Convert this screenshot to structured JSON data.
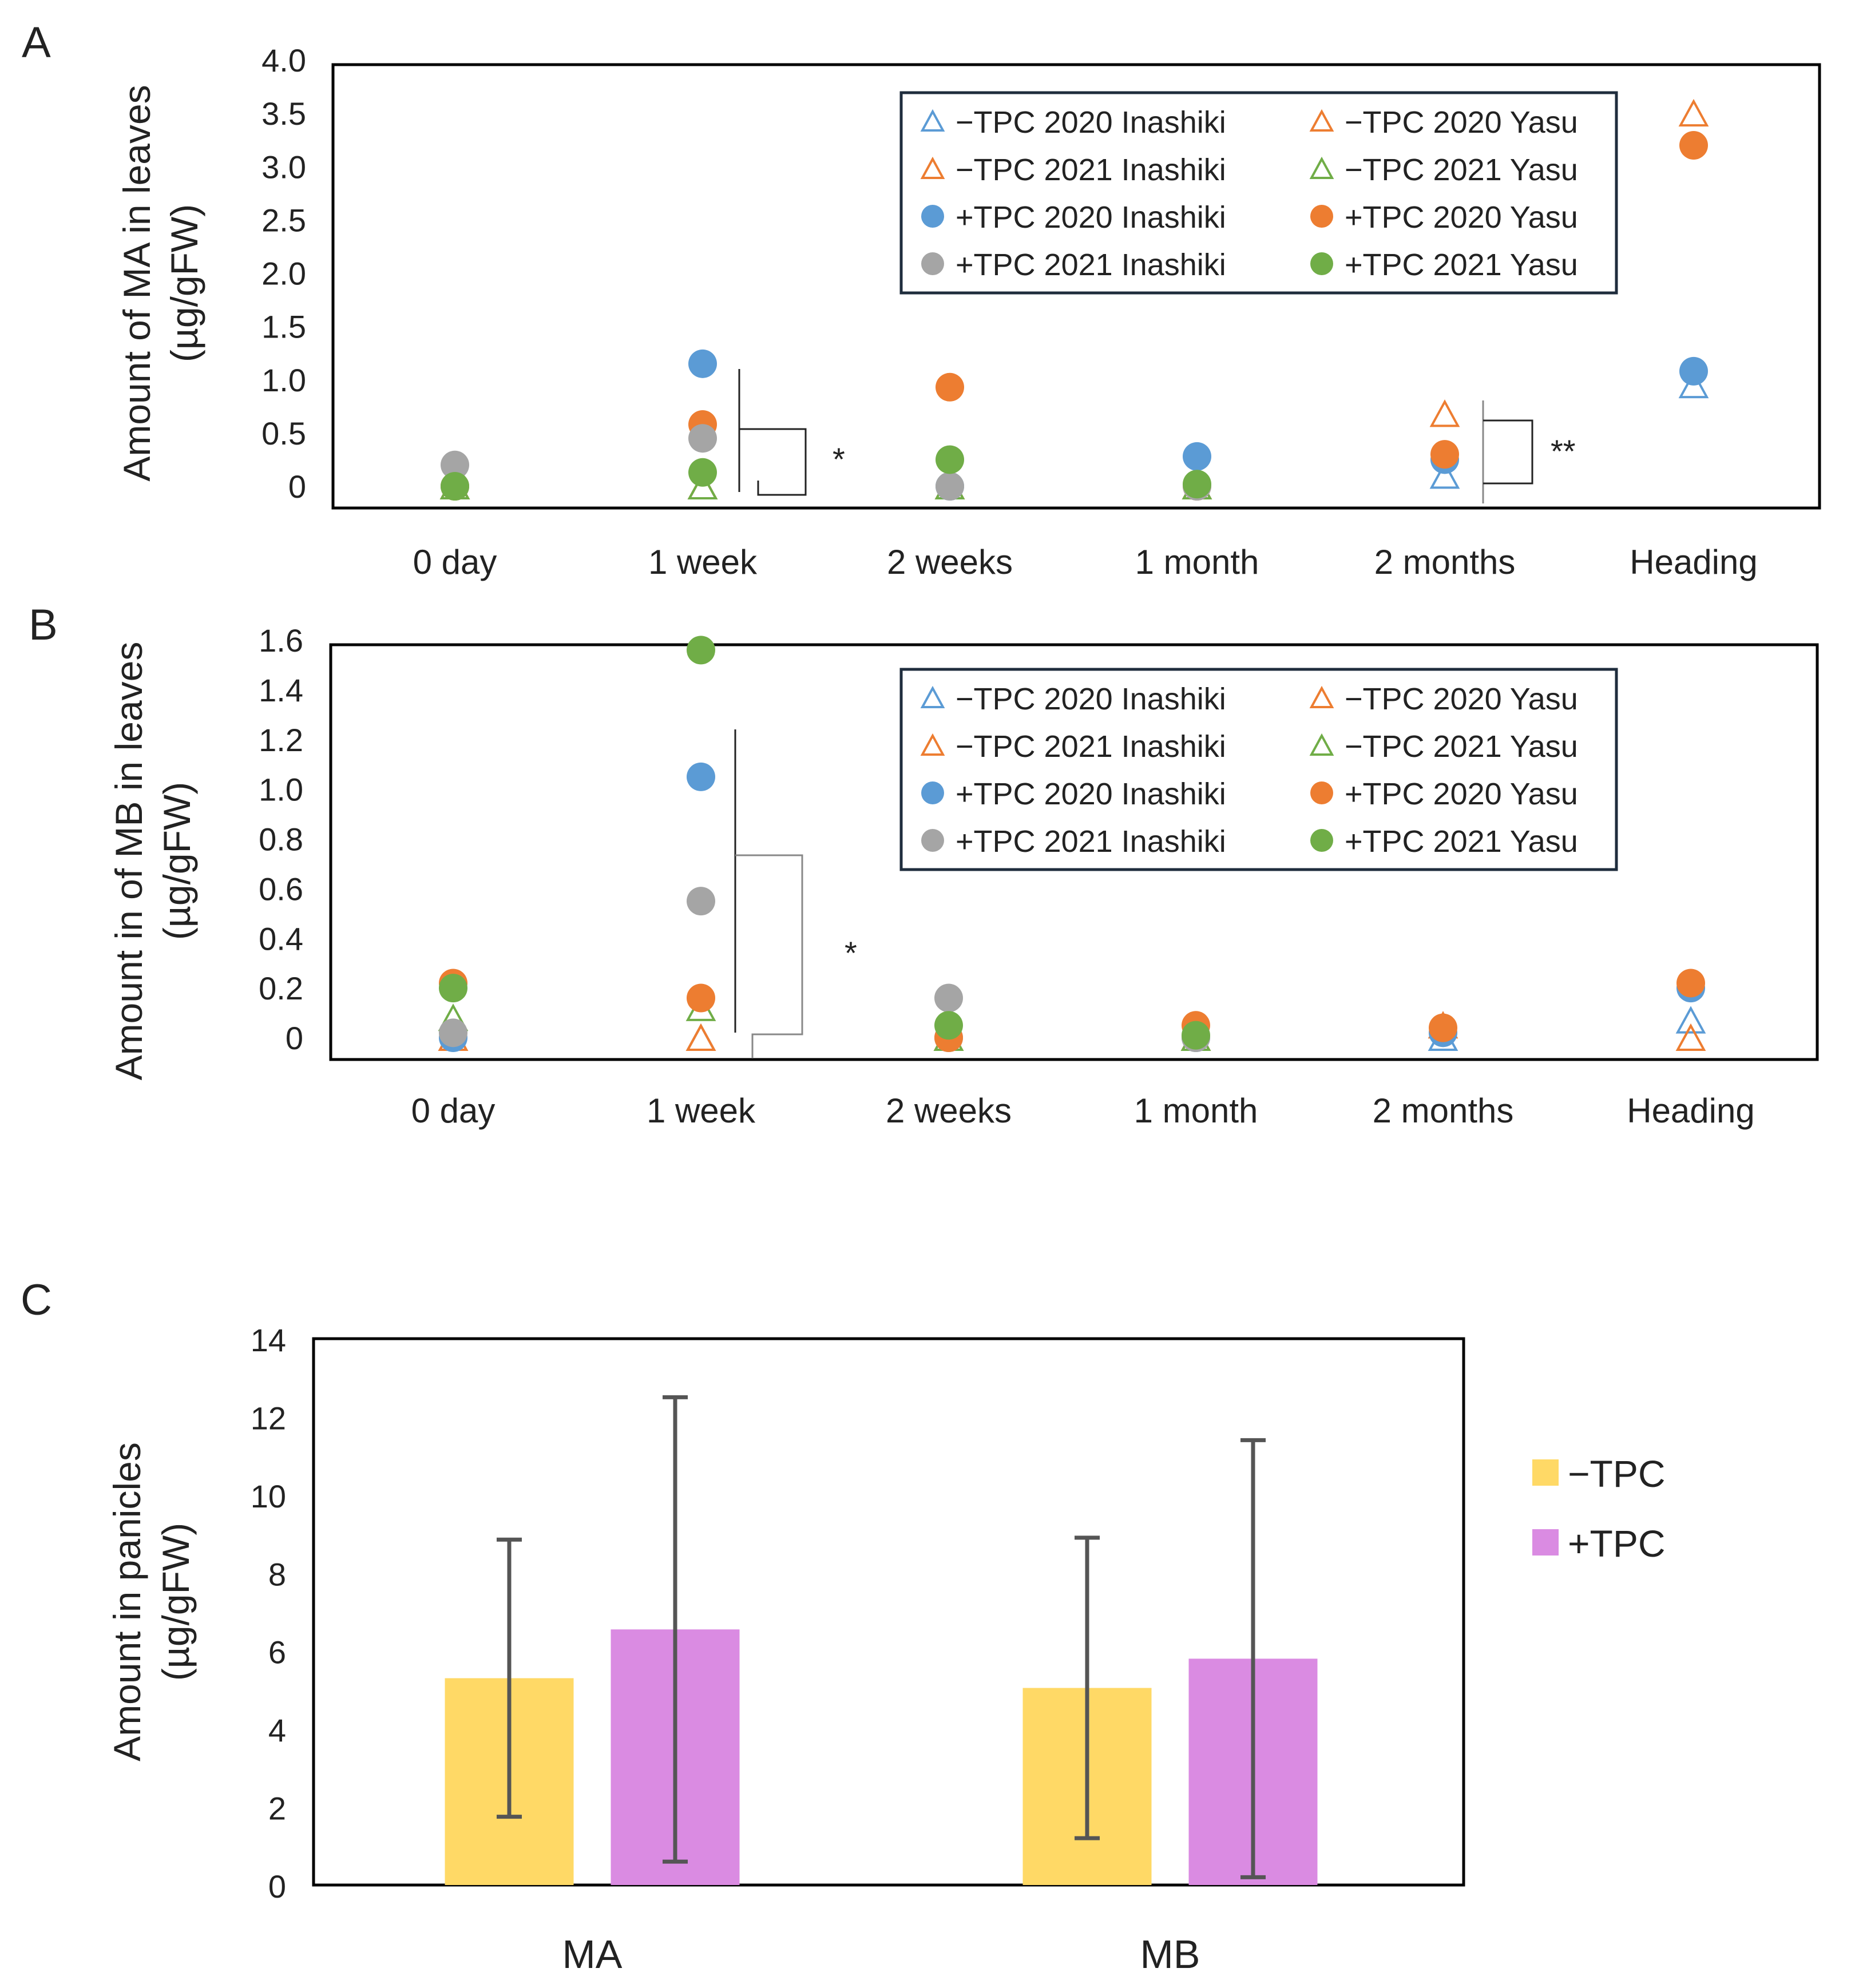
{
  "figure": {
    "panels": [
      "A",
      "B",
      "C"
    ]
  },
  "chart_data": [
    {
      "id": "A",
      "type": "scatter",
      "ylabel_line1": "Amount of MA in leaves",
      "ylabel_line2": "(µg/gFW)",
      "ylim": [
        0,
        4.0
      ],
      "yticks": [
        0,
        0.5,
        1.0,
        1.5,
        2.0,
        2.5,
        3.0,
        3.5,
        4.0
      ],
      "ytick_labels": [
        "0",
        "0.5",
        "1.0",
        "1.5",
        "2.0",
        "2.5",
        "3.0",
        "3.5",
        "4.0"
      ],
      "categories": [
        "0 day",
        "1 week",
        "2 weeks",
        "1 month",
        "2 months",
        "Heading"
      ],
      "legend": [
        {
          "label": "−TPC 2020 Inashiki",
          "marker": "triangle",
          "color": "#5B9BD5"
        },
        {
          "label": "−TPC 2020 Yasu",
          "marker": "triangle",
          "color": "#ED7D31"
        },
        {
          "label": "−TPC 2021 Inashiki",
          "marker": "triangle",
          "color": "#ED7D31"
        },
        {
          "label": "−TPC 2021 Yasu",
          "marker": "triangle",
          "color": "#70AD47"
        },
        {
          "label": "+TPC 2020 Inashiki",
          "marker": "circle",
          "color": "#5B9BD5"
        },
        {
          "label": "+TPC 2020 Yasu",
          "marker": "circle",
          "color": "#ED7D31"
        },
        {
          "label": "+TPC 2021 Inashiki",
          "marker": "circle",
          "color": "#A5A5A5"
        },
        {
          "label": "+TPC 2021 Yasu",
          "marker": "circle",
          "color": "#70AD47"
        }
      ],
      "series": [
        {
          "name": "−TPC 2020 Inashiki",
          "marker": "triangle",
          "color": "#5B9BD5",
          "values": [
            0,
            0,
            0,
            0,
            0.1,
            0.95
          ]
        },
        {
          "name": "−TPC 2020 Yasu",
          "marker": "triangle",
          "color": "#ED7D31",
          "values": [
            0,
            0,
            0,
            0,
            0.68,
            3.5
          ]
        },
        {
          "name": "−TPC 2021 Inashiki",
          "marker": "triangle",
          "color": "#ED7D31",
          "values": [
            0,
            0,
            0,
            0,
            null,
            null
          ]
        },
        {
          "name": "−TPC 2021 Yasu",
          "marker": "triangle",
          "color": "#70AD47",
          "values": [
            0,
            0,
            0,
            0,
            null,
            null
          ]
        },
        {
          "name": "+TPC 2020 Inashiki",
          "marker": "circle",
          "color": "#5B9BD5",
          "values": [
            0,
            1.15,
            0,
            0.28,
            0.25,
            1.08
          ]
        },
        {
          "name": "+TPC 2020 Yasu",
          "marker": "circle",
          "color": "#ED7D31",
          "values": [
            0,
            0.58,
            0.93,
            0,
            0.3,
            3.2
          ]
        },
        {
          "name": "+TPC 2021 Inashiki",
          "marker": "circle",
          "color": "#A5A5A5",
          "values": [
            0.2,
            0.45,
            0,
            0,
            null,
            null
          ]
        },
        {
          "name": "+TPC 2021 Yasu",
          "marker": "circle",
          "color": "#70AD47",
          "values": [
            0.0,
            0.13,
            0.25,
            0.02,
            null,
            null
          ]
        }
      ],
      "annotations": [
        {
          "category": "1 week",
          "text": "*"
        },
        {
          "category": "2 months",
          "text": "**"
        }
      ]
    },
    {
      "id": "B",
      "type": "scatter",
      "ylabel_line1": "Amount in of MB in leaves",
      "ylabel_line2": "(µg/gFW)",
      "ylim": [
        0,
        1.6
      ],
      "yticks": [
        0,
        0.2,
        0.4,
        0.6,
        0.8,
        1.0,
        1.2,
        1.4,
        1.6
      ],
      "ytick_labels": [
        "0",
        "0.2",
        "0.4",
        "0.6",
        "0.8",
        "1.0",
        "1.2",
        "1.4",
        "1.6"
      ],
      "categories": [
        "0 day",
        "1 week",
        "2 weeks",
        "1 month",
        "2 months",
        "Heading"
      ],
      "legend": [
        {
          "label": "−TPC 2020 Inashiki",
          "marker": "triangle",
          "color": "#5B9BD5"
        },
        {
          "label": "−TPC 2020 Yasu",
          "marker": "triangle",
          "color": "#ED7D31"
        },
        {
          "label": "−TPC 2021 Inashiki",
          "marker": "triangle",
          "color": "#ED7D31"
        },
        {
          "label": "−TPC 2021 Yasu",
          "marker": "triangle",
          "color": "#70AD47"
        },
        {
          "label": "+TPC 2020 Inashiki",
          "marker": "circle",
          "color": "#5B9BD5"
        },
        {
          "label": "+TPC 2020 Yasu",
          "marker": "circle",
          "color": "#ED7D31"
        },
        {
          "label": "+TPC 2021 Inashiki",
          "marker": "circle",
          "color": "#A5A5A5"
        },
        {
          "label": "+TPC 2021 Yasu",
          "marker": "circle",
          "color": "#70AD47"
        }
      ],
      "series": [
        {
          "name": "−TPC 2020 Inashiki",
          "marker": "triangle",
          "color": "#5B9BD5",
          "values": [
            0,
            0,
            0,
            0,
            0,
            0.07
          ]
        },
        {
          "name": "−TPC 2020 Yasu",
          "marker": "triangle",
          "color": "#ED7D31",
          "values": [
            0,
            0,
            0,
            0,
            0.05,
            0
          ]
        },
        {
          "name": "−TPC 2021 Inashiki",
          "marker": "triangle",
          "color": "#ED7D31",
          "values": [
            0,
            0,
            0,
            0,
            null,
            null
          ]
        },
        {
          "name": "−TPC 2021 Yasu",
          "marker": "triangle",
          "color": "#70AD47",
          "values": [
            0.08,
            0.12,
            0,
            0,
            null,
            null
          ]
        },
        {
          "name": "+TPC 2020 Inashiki",
          "marker": "circle",
          "color": "#5B9BD5",
          "values": [
            0,
            1.05,
            0,
            0,
            0.02,
            0.2
          ]
        },
        {
          "name": "+TPC 2020 Yasu",
          "marker": "circle",
          "color": "#ED7D31",
          "values": [
            0.22,
            0.16,
            0,
            0.05,
            0.04,
            0.22
          ]
        },
        {
          "name": "+TPC 2021 Inashiki",
          "marker": "circle",
          "color": "#A5A5A5",
          "values": [
            0.02,
            0.55,
            0.16,
            0,
            null,
            null
          ]
        },
        {
          "name": "+TPC 2021 Yasu",
          "marker": "circle",
          "color": "#70AD47",
          "values": [
            0.2,
            1.56,
            0.05,
            0.01,
            null,
            null
          ]
        }
      ],
      "annotations": [
        {
          "category": "1 week",
          "text": "*"
        }
      ]
    },
    {
      "id": "C",
      "type": "bar",
      "ylabel_line1": "Amount in panicles",
      "ylabel_line2": "(µg/gFW)",
      "ylim": [
        0,
        14
      ],
      "yticks": [
        0,
        2,
        4,
        6,
        8,
        10,
        12,
        14
      ],
      "ytick_labels": [
        "0",
        "2",
        "4",
        "6",
        "8",
        "10",
        "12",
        "14"
      ],
      "categories": [
        "MA",
        "MB"
      ],
      "series": [
        {
          "name": "−TPC",
          "color": "#FFD966",
          "values": [
            5.3,
            5.05
          ],
          "err": [
            3.55,
            3.85
          ]
        },
        {
          "name": "+TPC",
          "color": "#DA8BE2",
          "values": [
            6.55,
            5.8
          ],
          "err": [
            5.95,
            5.6
          ]
        }
      ],
      "legend": [
        {
          "label": "−TPC",
          "color": "#FFD966"
        },
        {
          "label": "+TPC",
          "color": "#DA8BE2"
        }
      ]
    }
  ]
}
